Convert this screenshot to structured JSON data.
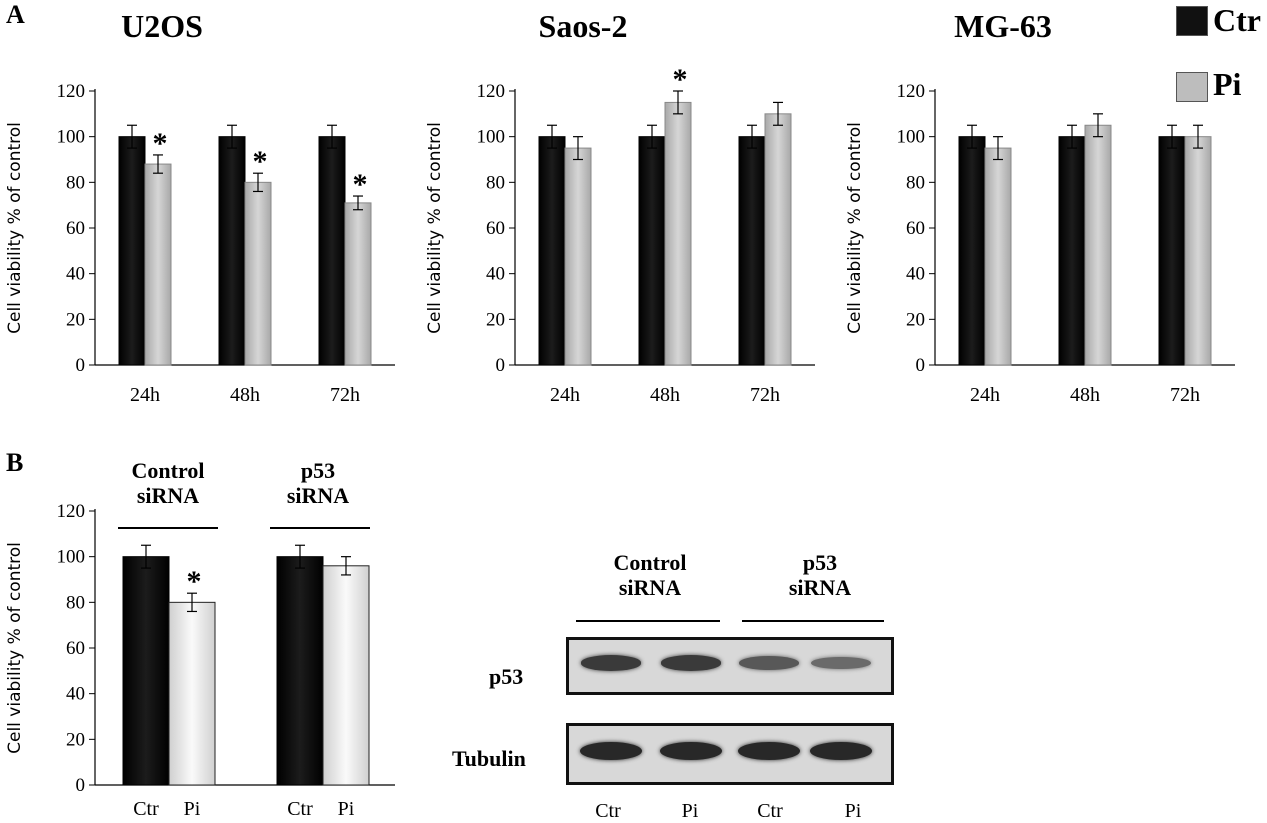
{
  "panel_labels": {
    "a": "A",
    "b": "B"
  },
  "legend": {
    "ctr": "Ctr",
    "pi": "Pi",
    "ctr_color": "#111111",
    "pi_color": "#bdbdbd"
  },
  "ylabel": "Cell viability % of control",
  "yticks": [
    "0",
    "20",
    "40",
    "60",
    "80",
    "100",
    "120"
  ],
  "chart_data": [
    {
      "type": "bar",
      "title": "U2OS",
      "categories": [
        "24h",
        "48h",
        "72h"
      ],
      "series": [
        {
          "name": "Ctr",
          "values": [
            100,
            100,
            100
          ],
          "errors": [
            5,
            5,
            5
          ]
        },
        {
          "name": "Pi",
          "values": [
            88,
            80,
            71
          ],
          "errors": [
            4,
            4,
            3
          ]
        }
      ],
      "significance": [
        [
          false,
          true
        ],
        [
          false,
          true
        ],
        [
          false,
          true
        ]
      ],
      "ylabel": "Cell viability % of control",
      "ylim": [
        0,
        120
      ]
    },
    {
      "type": "bar",
      "title": "Saos-2",
      "categories": [
        "24h",
        "48h",
        "72h"
      ],
      "series": [
        {
          "name": "Ctr",
          "values": [
            100,
            100,
            100
          ],
          "errors": [
            5,
            5,
            5
          ]
        },
        {
          "name": "Pi",
          "values": [
            95,
            115,
            110
          ],
          "errors": [
            5,
            5,
            5
          ]
        }
      ],
      "significance": [
        [
          false,
          false
        ],
        [
          false,
          true
        ],
        [
          false,
          false
        ]
      ],
      "ylabel": "Cell viability % of control",
      "ylim": [
        0,
        120
      ]
    },
    {
      "type": "bar",
      "title": "MG-63",
      "categories": [
        "24h",
        "48h",
        "72h"
      ],
      "series": [
        {
          "name": "Ctr",
          "values": [
            100,
            100,
            100
          ],
          "errors": [
            5,
            5,
            5
          ]
        },
        {
          "name": "Pi",
          "values": [
            95,
            105,
            100
          ],
          "errors": [
            5,
            5,
            5
          ]
        }
      ],
      "significance": [
        [
          false,
          false
        ],
        [
          false,
          false
        ],
        [
          false,
          false
        ]
      ],
      "ylabel": "Cell viability % of control",
      "ylim": [
        0,
        120
      ]
    },
    {
      "type": "bar",
      "title": "",
      "groups": [
        "Control siRNA",
        "p53 siRNA"
      ],
      "categories": [
        "Ctr",
        "Pi",
        "Ctr",
        "Pi"
      ],
      "values": [
        100,
        80,
        100,
        96
      ],
      "errors": [
        5,
        4,
        5,
        4
      ],
      "significance": [
        false,
        true,
        false,
        false
      ],
      "ylabel": "Cell viability % of control",
      "ylim": [
        0,
        120
      ]
    }
  ],
  "panel_b": {
    "group_labels": [
      [
        "Control",
        "siRNA"
      ],
      [
        "p53",
        "siRNA"
      ]
    ]
  },
  "western_blot": {
    "group_labels": [
      [
        "Control",
        "siRNA"
      ],
      [
        "p53",
        "siRNA"
      ]
    ],
    "rows": [
      {
        "label": "p53",
        "intensities": [
          0.85,
          0.85,
          0.6,
          0.45
        ]
      },
      {
        "label": "Tubulin",
        "intensities": [
          1.0,
          1.0,
          1.0,
          1.0
        ]
      }
    ],
    "lanes": [
      "Ctr",
      "Pi",
      "Ctr",
      "Pi"
    ]
  },
  "significance_marker": "*"
}
